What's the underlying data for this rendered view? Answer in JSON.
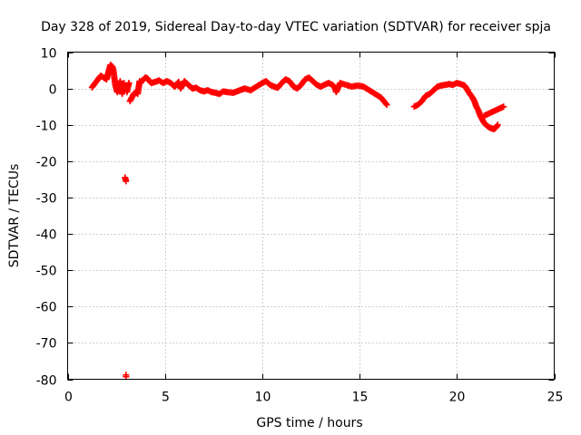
{
  "chart_data": {
    "type": "scatter",
    "title": "Day 328 of 2019, Sidereal Day-to-day VTEC variation (SDTVAR) for receiver spja",
    "xlabel": "GPS time / hours",
    "ylabel": "SDTVAR / TECUs",
    "xlim": [
      0,
      25
    ],
    "ylim": [
      -80,
      10
    ],
    "xticks": [
      0,
      5,
      10,
      15,
      20,
      25
    ],
    "yticks": [
      10,
      0,
      -10,
      -20,
      -30,
      -40,
      -50,
      -60,
      -70,
      -80
    ],
    "grid": true,
    "marker": "plus",
    "color": "#ff0000",
    "series": [
      {
        "name": "SDTVAR",
        "x": [
          1.25,
          1.7,
          2.0,
          2.1,
          2.2,
          2.3,
          2.35,
          2.4,
          2.45,
          2.5,
          2.55,
          2.6,
          2.65,
          2.7,
          2.75,
          2.8,
          2.85,
          2.9,
          2.95,
          3.0,
          3.0,
          3.0,
          3.05,
          3.1,
          3.15,
          3.2,
          3.3,
          3.4,
          3.5,
          3.6,
          3.7,
          3.75,
          3.8,
          3.9,
          4.0,
          4.1,
          4.2,
          4.3,
          4.5,
          4.7,
          4.9,
          5.1,
          5.3,
          5.5,
          5.7,
          5.8,
          5.9,
          6.0,
          6.2,
          6.4,
          6.6,
          6.8,
          7.0,
          7.2,
          7.4,
          7.6,
          7.8,
          8.0,
          8.2,
          8.5,
          8.8,
          9.1,
          9.4,
          9.7,
          10.0,
          10.2,
          10.4,
          10.6,
          10.8,
          11.0,
          11.2,
          11.4,
          11.6,
          11.8,
          12.0,
          12.2,
          12.4,
          12.6,
          12.8,
          13.0,
          13.2,
          13.4,
          13.6,
          13.7,
          13.8,
          14.0,
          14.3,
          14.6,
          14.9,
          15.2,
          15.5,
          15.8,
          16.1,
          16.4,
          17.8,
          18.0,
          18.2,
          18.4,
          18.6,
          18.8,
          19.0,
          19.2,
          19.4,
          19.6,
          19.8,
          20.0,
          20.2,
          20.4,
          20.6,
          20.8,
          20.9,
          21.0,
          21.1,
          21.2,
          21.3,
          21.4,
          21.5,
          21.6,
          21.7,
          21.8,
          21.9,
          22.0,
          22.1,
          21.4,
          21.6,
          21.8,
          22.0,
          22.2,
          22.4
        ],
        "y": [
          0.3,
          3.5,
          2.5,
          4.5,
          6.5,
          6.0,
          5.0,
          3.0,
          1.0,
          0.0,
          -1.0,
          -0.5,
          1.0,
          2.0,
          0.5,
          -1.5,
          -0.5,
          1.5,
          -24.5,
          -25.5,
          -78.8,
          -79.3,
          -1.0,
          0.5,
          1.5,
          -3.5,
          -2.5,
          -1.5,
          -1.0,
          -1.5,
          2.0,
          1.5,
          2.0,
          2.5,
          3.0,
          2.8,
          2.0,
          1.5,
          1.8,
          2.2,
          1.5,
          2.0,
          1.5,
          0.5,
          1.8,
          0.0,
          0.8,
          2.0,
          1.0,
          0.0,
          0.2,
          -0.5,
          -0.8,
          -0.5,
          -1.0,
          -1.2,
          -1.5,
          -0.8,
          -1.0,
          -1.2,
          -0.6,
          0.0,
          -0.5,
          0.5,
          1.5,
          2.0,
          1.0,
          0.5,
          0.2,
          1.5,
          2.5,
          2.0,
          0.5,
          0.0,
          1.0,
          2.5,
          3.0,
          2.0,
          1.0,
          0.5,
          1.0,
          1.5,
          1.0,
          0.5,
          -1.0,
          1.5,
          1.0,
          0.5,
          0.8,
          0.5,
          -0.5,
          -1.5,
          -2.5,
          -4.5,
          -5.0,
          -4.5,
          -3.5,
          -2.0,
          -1.5,
          -0.5,
          0.5,
          0.8,
          1.0,
          1.2,
          1.0,
          1.5,
          1.2,
          0.8,
          -1.0,
          -2.5,
          -3.5,
          -5.0,
          -6.0,
          -7.5,
          -8.5,
          -9.5,
          -10.0,
          -10.5,
          -10.8,
          -11.0,
          -11.2,
          -10.8,
          -10.0,
          -7.5,
          -7.0,
          -6.5,
          -6.0,
          -5.5,
          -5.0
        ]
      }
    ]
  }
}
